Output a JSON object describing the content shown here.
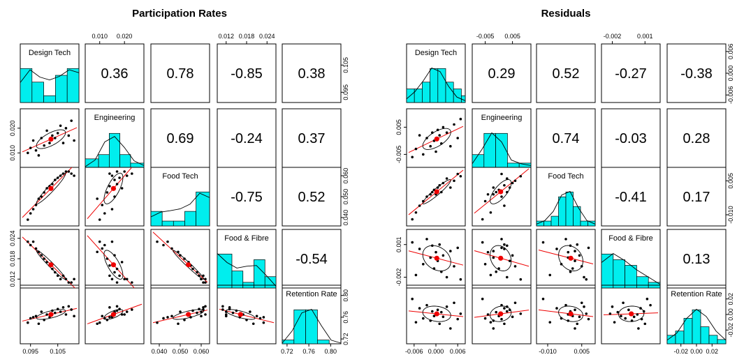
{
  "chart_data": [
    {
      "type": "scatter",
      "title": "Participation Rates",
      "variables": [
        "Design Tech",
        "Engineering",
        "Food Tech",
        "Food & Fibre",
        "Retention Rate"
      ],
      "correlations": [
        {
          "row": 1,
          "col": 2,
          "label": "0.36"
        },
        {
          "row": 1,
          "col": 3,
          "label": "0.78"
        },
        {
          "row": 1,
          "col": 4,
          "label": "-0.85"
        },
        {
          "row": 1,
          "col": 5,
          "label": "0.38"
        },
        {
          "row": 2,
          "col": 3,
          "label": "0.69"
        },
        {
          "row": 2,
          "col": 4,
          "label": "-0.24"
        },
        {
          "row": 2,
          "col": 5,
          "label": "0.37"
        },
        {
          "row": 3,
          "col": 4,
          "label": "-0.75"
        },
        {
          "row": 3,
          "col": 5,
          "label": "0.52"
        },
        {
          "row": 4,
          "col": 5,
          "label": "-0.54"
        }
      ],
      "axes": [
        {
          "range": [
            0.092,
            0.112
          ],
          "ticks": [
            "0.095",
            "0.105"
          ]
        },
        {
          "range": [
            0.005,
            0.027
          ],
          "ticks": [
            "0.010",
            "0.020"
          ]
        },
        {
          "range": [
            0.037,
            0.063
          ],
          "ticks": [
            "0.040",
            "0.050",
            "0.060"
          ]
        },
        {
          "range": [
            0.01,
            0.026
          ],
          "ticks": [
            "0.012",
            "0.018",
            "0.024"
          ]
        },
        {
          "range": [
            0.715,
            0.815
          ],
          "ticks": [
            "0.72",
            "0.76",
            "0.80"
          ]
        }
      ],
      "histograms": [
        {
          "bins": [
            0.092,
            0.096,
            0.1,
            0.104,
            0.108,
            0.112
          ],
          "counts": [
            5,
            3,
            1,
            4,
            5
          ],
          "density": [
            0.55,
            0.9,
            0.7,
            0.62,
            0.72,
            0.9,
            0.82
          ]
        },
        {
          "bins": [
            0.005,
            0.01,
            0.014,
            0.018,
            0.022,
            0.027
          ],
          "counts": [
            2,
            3,
            8,
            3,
            1
          ],
          "density": [
            0.02,
            0.2,
            0.7,
            0.85,
            0.55,
            0.18,
            0.05
          ]
        },
        {
          "bins": [
            0.037,
            0.042,
            0.047,
            0.052,
            0.057,
            0.063
          ],
          "counts": [
            3,
            1,
            1,
            3,
            7
          ],
          "density": [
            0.25,
            0.38,
            0.42,
            0.47,
            0.6,
            0.9,
            0.78
          ]
        },
        {
          "bins": [
            0.01,
            0.014,
            0.017,
            0.02,
            0.023,
            0.026
          ],
          "counts": [
            6,
            3,
            1,
            5,
            2
          ],
          "density": [
            0.95,
            0.7,
            0.55,
            0.6,
            0.62,
            0.35,
            0.05
          ]
        },
        {
          "bins": [
            0.715,
            0.735,
            0.755,
            0.775,
            0.795,
            0.815
          ],
          "counts": [
            1,
            9,
            9,
            1,
            0
          ],
          "density": [
            0.02,
            0.35,
            0.85,
            0.95,
            0.5,
            0.1,
            0.02
          ]
        }
      ],
      "means": [
        0.102,
        0.015,
        0.055,
        0.016,
        0.762
      ],
      "points": [
        [
          0.094,
          0.01,
          0.039,
          0.023,
          0.75
        ],
        [
          0.095,
          0.012,
          0.042,
          0.022,
          0.758
        ],
        [
          0.096,
          0.015,
          0.044,
          0.023,
          0.76
        ],
        [
          0.097,
          0.011,
          0.046,
          0.021,
          0.762
        ],
        [
          0.098,
          0.009,
          0.049,
          0.02,
          0.748
        ],
        [
          0.099,
          0.016,
          0.05,
          0.019,
          0.77
        ],
        [
          0.1,
          0.013,
          0.052,
          0.018,
          0.755
        ],
        [
          0.101,
          0.019,
          0.054,
          0.017,
          0.765
        ],
        [
          0.102,
          0.014,
          0.055,
          0.016,
          0.76
        ],
        [
          0.103,
          0.017,
          0.056,
          0.015,
          0.772
        ],
        [
          0.104,
          0.016,
          0.058,
          0.014,
          0.768
        ],
        [
          0.105,
          0.018,
          0.059,
          0.013,
          0.775
        ],
        [
          0.106,
          0.021,
          0.06,
          0.012,
          0.77
        ],
        [
          0.107,
          0.014,
          0.061,
          0.013,
          0.778
        ],
        [
          0.108,
          0.02,
          0.062,
          0.012,
          0.765
        ],
        [
          0.109,
          0.017,
          0.062,
          0.011,
          0.78
        ],
        [
          0.11,
          0.023,
          0.061,
          0.011,
          0.774
        ],
        [
          0.111,
          0.015,
          0.06,
          0.012,
          0.762
        ]
      ]
    },
    {
      "type": "scatter",
      "title": "Residuals",
      "variables": [
        "Design Tech",
        "Engineering",
        "Food Tech",
        "Food & Fibre",
        "Retention Rate"
      ],
      "correlations": [
        {
          "row": 1,
          "col": 2,
          "label": "0.29"
        },
        {
          "row": 1,
          "col": 3,
          "label": "0.52"
        },
        {
          "row": 1,
          "col": 4,
          "label": "-0.27"
        },
        {
          "row": 1,
          "col": 5,
          "label": "-0.38"
        },
        {
          "row": 2,
          "col": 3,
          "label": "0.74"
        },
        {
          "row": 2,
          "col": 4,
          "label": "-0.03"
        },
        {
          "row": 2,
          "col": 5,
          "label": "0.28"
        },
        {
          "row": 3,
          "col": 4,
          "label": "-0.41"
        },
        {
          "row": 3,
          "col": 5,
          "label": "0.17"
        },
        {
          "row": 4,
          "col": 5,
          "label": "0.13"
        }
      ],
      "axes": [
        {
          "range": [
            -0.0075,
            0.0075
          ],
          "ticks": [
            "-0.006",
            "0.000",
            "0.006"
          ]
        },
        {
          "range": [
            -0.009,
            0.011
          ],
          "ticks": [
            "-0.005",
            "0.005"
          ]
        },
        {
          "range": [
            -0.014,
            0.01
          ],
          "ticks": [
            "-0.010",
            "0.005"
          ]
        },
        {
          "range": [
            -0.0028,
            0.0022
          ],
          "ticks": [
            "-0.002",
            "0.001"
          ]
        },
        {
          "range": [
            -0.035,
            0.035
          ],
          "ticks": [
            "-0.02",
            "0.00",
            "0.02"
          ]
        }
      ],
      "right_ticks": {
        "1": [
          "-0.006",
          "0.000",
          "0.006"
        ],
        "3": [
          "-0.010",
          "0.005"
        ],
        "5": [
          "-0.02",
          "0.00",
          "0.02"
        ]
      },
      "histograms": [
        {
          "bins": [
            -0.0075,
            -0.0055,
            -0.0035,
            -0.0015,
            0.0005,
            0.0025,
            0.0045,
            0.0065,
            0.0075
          ],
          "counts": [
            2,
            2,
            3,
            5,
            5,
            3,
            2,
            1
          ],
          "density": [
            0.1,
            0.3,
            0.6,
            0.95,
            0.85,
            0.45,
            0.15,
            0.05
          ]
        },
        {
          "bins": [
            -0.009,
            -0.005,
            -0.001,
            0.003,
            0.007,
            0.011
          ],
          "counts": [
            3,
            8,
            8,
            1,
            1
          ],
          "density": [
            0.1,
            0.5,
            0.95,
            0.7,
            0.2,
            0.1,
            0.05
          ]
        },
        {
          "bins": [
            -0.014,
            -0.011,
            -0.008,
            -0.005,
            -0.002,
            0.001,
            0.004,
            0.007,
            0.01
          ],
          "counts": [
            1,
            1,
            2,
            6,
            7,
            4,
            1,
            1
          ],
          "density": [
            0.05,
            0.15,
            0.4,
            0.85,
            0.95,
            0.5,
            0.15,
            0.05
          ]
        },
        {
          "bins": [
            -0.0028,
            -0.0018,
            -0.0008,
            0.0002,
            0.0012,
            0.0022
          ],
          "counts": [
            6,
            5,
            4,
            2,
            1
          ],
          "density": [
            0.7,
            0.95,
            0.75,
            0.5,
            0.3,
            0.1
          ]
        },
        {
          "bins": [
            -0.035,
            -0.025,
            -0.015,
            -0.005,
            0.005,
            0.015,
            0.025,
            0.035
          ],
          "counts": [
            2,
            3,
            6,
            8,
            4,
            2,
            1
          ],
          "density": [
            0.1,
            0.3,
            0.7,
            0.95,
            0.75,
            0.35,
            0.1
          ]
        }
      ],
      "means": [
        0.0,
        0.0,
        -0.001,
        0.0,
        0.0
      ],
      "points": [
        [
          -0.0065,
          -0.006,
          -0.012,
          0.0012,
          0.02
        ],
        [
          -0.0055,
          -0.003,
          -0.009,
          -0.0018,
          -0.01
        ],
        [
          -0.0045,
          0.002,
          -0.006,
          0.0006,
          0.008
        ],
        [
          -0.0035,
          -0.005,
          -0.004,
          -0.0008,
          -0.005
        ],
        [
          -0.0025,
          0.001,
          -0.002,
          0.0015,
          0.012
        ],
        [
          -0.0015,
          -0.002,
          -0.001,
          -0.0002,
          -0.008
        ],
        [
          -0.001,
          0.003,
          0.0,
          0.0009,
          0.004
        ],
        [
          -0.0005,
          0.0,
          0.001,
          -0.0012,
          -0.002
        ],
        [
          0.0,
          -0.004,
          -0.001,
          0.0003,
          0.0
        ],
        [
          0.0005,
          0.004,
          0.002,
          -0.0005,
          0.006
        ],
        [
          0.001,
          0.002,
          0.003,
          0.001,
          -0.012
        ],
        [
          0.0015,
          -0.001,
          0.0,
          -0.0015,
          0.003
        ],
        [
          0.002,
          0.005,
          0.004,
          0.0,
          -0.003
        ],
        [
          0.003,
          0.003,
          0.006,
          -0.002,
          0.01
        ],
        [
          0.004,
          -0.002,
          0.002,
          0.0004,
          -0.018
        ],
        [
          0.005,
          0.006,
          0.005,
          -0.001,
          0.015
        ],
        [
          0.006,
          0.001,
          0.008,
          0.0007,
          -0.006
        ],
        [
          0.0068,
          0.008,
          0.007,
          -0.0022,
          0.001
        ]
      ]
    }
  ]
}
